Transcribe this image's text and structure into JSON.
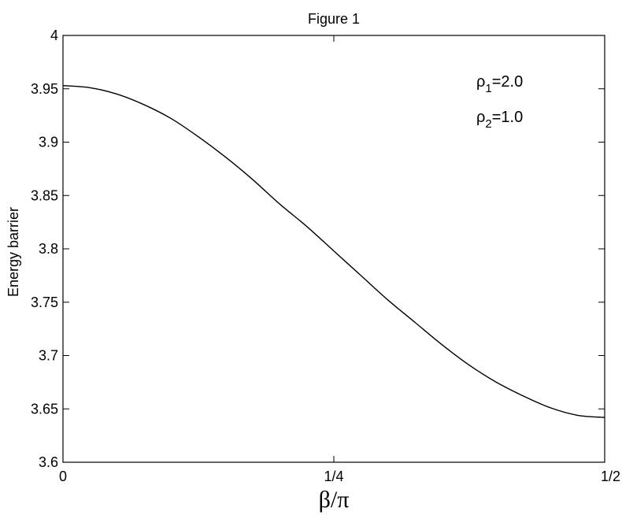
{
  "chart_data": {
    "type": "line",
    "title": "Figure 1",
    "xlabel": "β/π",
    "ylabel": "Energy barrier",
    "xlim": [
      0,
      0.5
    ],
    "ylim": [
      3.6,
      4.0
    ],
    "x_ticks": [
      {
        "value": 0,
        "label": "0"
      },
      {
        "value": 0.25,
        "label": "1/4"
      },
      {
        "value": 0.5,
        "label": "1/2"
      }
    ],
    "y_ticks": [
      {
        "value": 3.6,
        "label": "3.6"
      },
      {
        "value": 3.65,
        "label": "3.65"
      },
      {
        "value": 3.7,
        "label": "3.7"
      },
      {
        "value": 3.75,
        "label": "3.75"
      },
      {
        "value": 3.8,
        "label": "3.8"
      },
      {
        "value": 3.85,
        "label": "3.85"
      },
      {
        "value": 3.9,
        "label": "3.9"
      },
      {
        "value": 3.95,
        "label": "3.95"
      },
      {
        "value": 4.0,
        "label": "4"
      }
    ],
    "grid": false,
    "series": [
      {
        "color": "#000000",
        "x": [
          0,
          0.025,
          0.05,
          0.075,
          0.1,
          0.125,
          0.15,
          0.175,
          0.2,
          0.225,
          0.25,
          0.275,
          0.3,
          0.325,
          0.35,
          0.375,
          0.4,
          0.425,
          0.45,
          0.475,
          0.5
        ],
        "y": [
          3.953,
          3.951,
          3.945,
          3.935,
          3.922,
          3.905,
          3.886,
          3.865,
          3.842,
          3.821,
          3.798,
          3.775,
          3.752,
          3.731,
          3.71,
          3.691,
          3.675,
          3.662,
          3.651,
          3.644,
          3.642
        ]
      }
    ],
    "annotations": [
      {
        "base": "ρ",
        "sub": "1",
        "text": "=2.0"
      },
      {
        "base": "ρ",
        "sub": "2",
        "text": "=1.0"
      }
    ]
  }
}
